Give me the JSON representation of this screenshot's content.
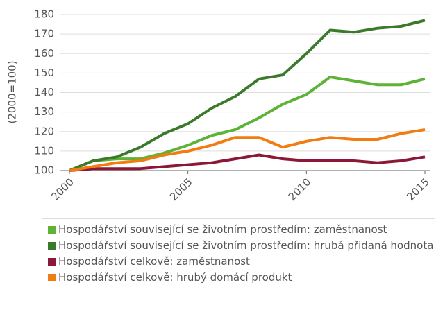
{
  "chart_data": {
    "type": "line",
    "ylabel": "(2000=100)",
    "x": [
      2000,
      2001,
      2002,
      2003,
      2004,
      2005,
      2006,
      2007,
      2008,
      2009,
      2010,
      2011,
      2012,
      2013,
      2014,
      2015
    ],
    "xlim": [
      2000,
      2015
    ],
    "xticks": [
      2000,
      2005,
      2010,
      2015
    ],
    "ylim": [
      100,
      180
    ],
    "yticks": [
      100,
      110,
      120,
      130,
      140,
      150,
      160,
      170,
      180
    ],
    "grid": true,
    "series": [
      {
        "name": "Hospodářství související se životním prostředím: zaměstnanost",
        "color": "#5cb336",
        "values": [
          100,
          105,
          106,
          106,
          109,
          113,
          118,
          121,
          127,
          134,
          139,
          148,
          146,
          144,
          144,
          147
        ]
      },
      {
        "name": "Hospodářství související se životním prostředím: hrubá přidaná hodnota",
        "color": "#3c7a2b",
        "values": [
          100,
          105,
          107,
          112,
          119,
          124,
          132,
          138,
          147,
          149,
          160,
          172,
          171,
          173,
          174,
          177
        ]
      },
      {
        "name": "Hospodářství celkově: zaměstnanost",
        "color": "#8c1838",
        "values": [
          100,
          101,
          101,
          101,
          102,
          103,
          104,
          106,
          108,
          106,
          105,
          105,
          105,
          104,
          105,
          107
        ]
      },
      {
        "name": "Hospodářství celkově: hrubý domácí produkt",
        "color": "#f07c12",
        "values": [
          100,
          102,
          104,
          105,
          108,
          110,
          113,
          117,
          117,
          112,
          115,
          117,
          116,
          116,
          119,
          121
        ]
      }
    ]
  }
}
